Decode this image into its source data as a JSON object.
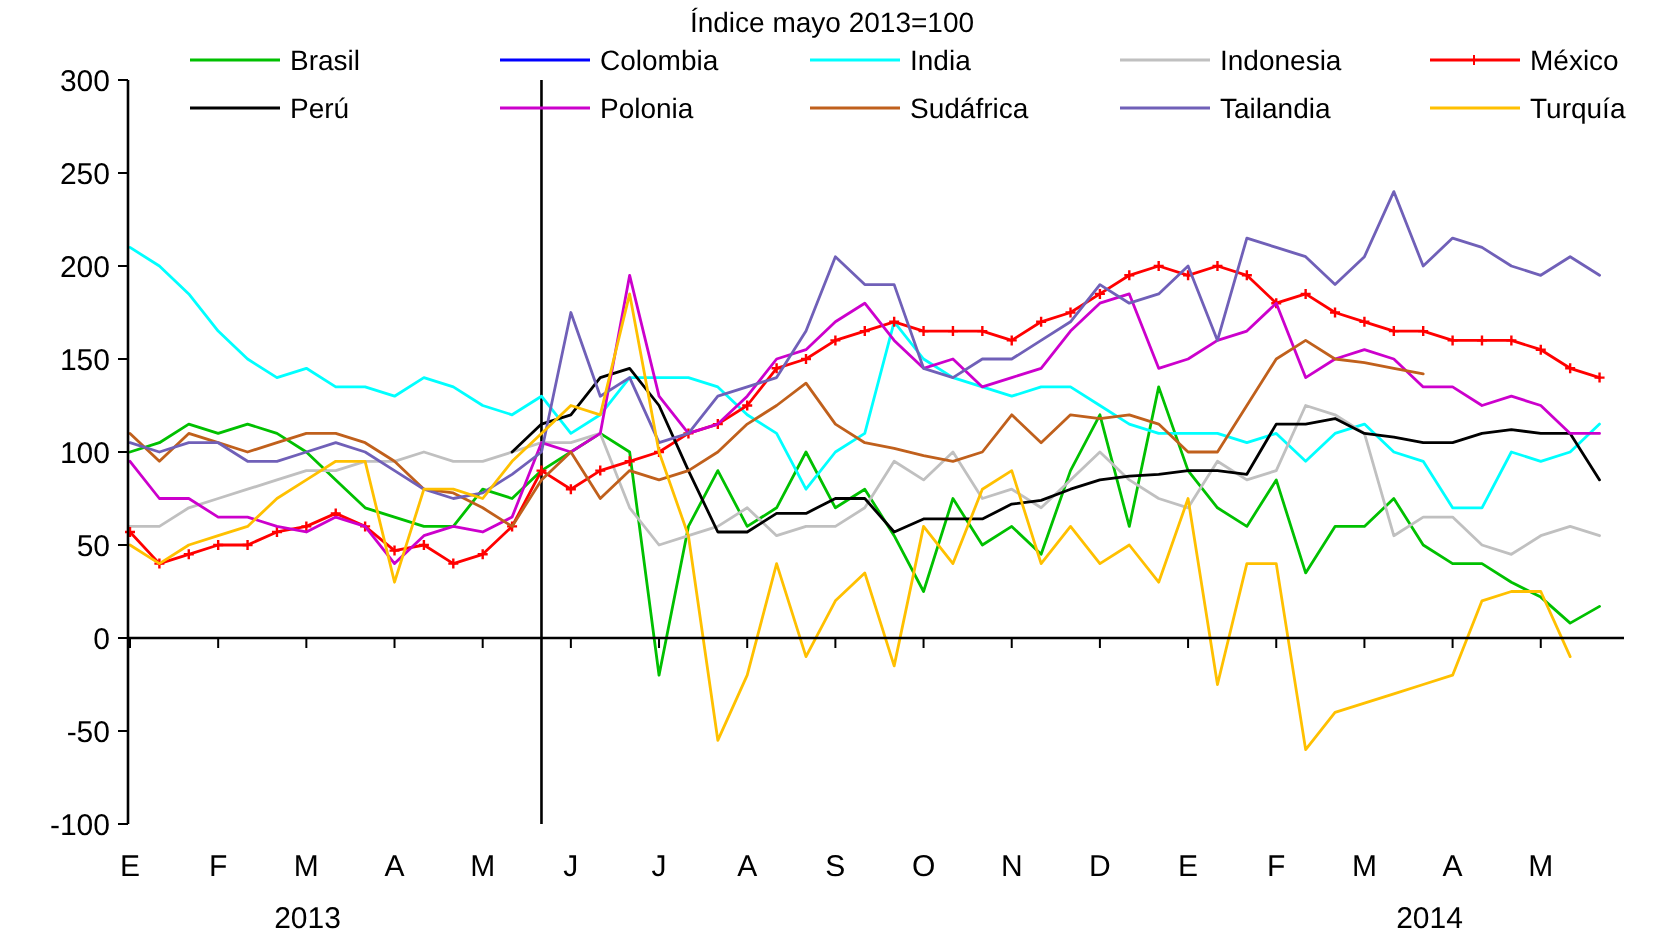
{
  "chart_data": {
    "type": "line",
    "title": "Índice mayo 2013=100",
    "categories": [
      "E",
      null,
      null,
      "F",
      null,
      null,
      "M",
      null,
      null,
      "A",
      null,
      null,
      "M",
      null,
      null,
      "J",
      null,
      null,
      "J",
      null,
      null,
      "A",
      null,
      null,
      "S",
      null,
      null,
      "O",
      null,
      null,
      "N",
      null,
      null,
      "D",
      null,
      null,
      "E",
      null,
      null,
      "F",
      null,
      null,
      "M",
      null,
      null,
      "A",
      null,
      null,
      "M",
      null,
      null
    ],
    "series": [
      {
        "name": "Brasil",
        "color": "#00c000",
        "values": [
          100,
          105,
          115,
          110,
          115,
          110,
          100,
          85,
          70,
          65,
          60,
          60,
          80,
          75,
          90,
          100,
          110,
          100,
          -20,
          60,
          90,
          60,
          70,
          100,
          70,
          80,
          55,
          25,
          75,
          50,
          60,
          45,
          90,
          120,
          60,
          135,
          90,
          70,
          60,
          85,
          35,
          60,
          60,
          75,
          50,
          40,
          40,
          30,
          22,
          8,
          17
        ]
      },
      {
        "name": "Colombia",
        "color": "#0000ff",
        "values": [
          null,
          null,
          null,
          null,
          null,
          null,
          null,
          null,
          null,
          null,
          null,
          null,
          null,
          null,
          null,
          null,
          null,
          null,
          null,
          null,
          null,
          null,
          null,
          null,
          null,
          null,
          null,
          null,
          null,
          null,
          null,
          null,
          null,
          null,
          null,
          null,
          null,
          null,
          null,
          null,
          null,
          null,
          null,
          null,
          null,
          null,
          null,
          null,
          null,
          null,
          null
        ]
      },
      {
        "name": "India",
        "color": "#00ffff",
        "values": [
          210,
          200,
          185,
          165,
          150,
          140,
          145,
          135,
          135,
          130,
          140,
          135,
          125,
          120,
          130,
          110,
          120,
          140,
          140,
          140,
          135,
          120,
          110,
          80,
          100,
          110,
          170,
          150,
          140,
          135,
          130,
          135,
          135,
          125,
          115,
          110,
          110,
          110,
          105,
          110,
          95,
          110,
          115,
          100,
          95,
          70,
          70,
          100,
          95,
          100,
          115
        ]
      },
      {
        "name": "Indonesia",
        "color": "#c0c0c0",
        "values": [
          60,
          60,
          70,
          75,
          80,
          85,
          90,
          90,
          95,
          95,
          100,
          95,
          95,
          100,
          105,
          105,
          110,
          70,
          50,
          55,
          60,
          70,
          55,
          60,
          60,
          70,
          95,
          85,
          100,
          75,
          80,
          70,
          85,
          100,
          85,
          75,
          70,
          95,
          85,
          90,
          125,
          120,
          110,
          55,
          65,
          65,
          50,
          45,
          55,
          60,
          55
        ]
      },
      {
        "name": "México",
        "color": "#ff0000",
        "marker": "cross",
        "values": [
          57,
          40,
          45,
          50,
          50,
          57,
          60,
          67,
          60,
          47,
          50,
          40,
          45,
          60,
          90,
          80,
          90,
          95,
          100,
          110,
          115,
          125,
          145,
          150,
          160,
          165,
          170,
          165,
          165,
          165,
          160,
          170,
          175,
          185,
          195,
          200,
          195,
          200,
          195,
          180,
          185,
          175,
          170,
          165,
          165,
          160,
          160,
          160,
          155,
          145,
          140
        ]
      },
      {
        "name": "Perú",
        "color": "#000000",
        "values": [
          null,
          null,
          null,
          null,
          null,
          null,
          null,
          null,
          null,
          null,
          null,
          null,
          null,
          100,
          115,
          120,
          140,
          145,
          125,
          90,
          57,
          57,
          67,
          67,
          75,
          75,
          57,
          64,
          64,
          64,
          72,
          74,
          80,
          85,
          87,
          88,
          90,
          90,
          88,
          115,
          115,
          118,
          110,
          108,
          105,
          105,
          110,
          112,
          110,
          110,
          85
        ]
      },
      {
        "name": "Polonia",
        "color": "#cc00cc",
        "values": [
          95,
          75,
          75,
          65,
          65,
          60,
          57,
          65,
          60,
          40,
          55,
          60,
          57,
          65,
          105,
          100,
          110,
          195,
          130,
          110,
          115,
          130,
          150,
          155,
          170,
          180,
          160,
          145,
          150,
          135,
          140,
          145,
          165,
          180,
          185,
          145,
          150,
          160,
          165,
          180,
          140,
          150,
          155,
          150,
          135,
          135,
          125,
          130,
          125,
          110,
          110
        ]
      },
      {
        "name": "Sudáfrica",
        "color": "#c0601c",
        "values": [
          110,
          95,
          110,
          105,
          100,
          105,
          110,
          110,
          105,
          95,
          80,
          78,
          70,
          60,
          85,
          100,
          75,
          90,
          85,
          90,
          100,
          115,
          125,
          137,
          115,
          105,
          102,
          98,
          95,
          100,
          120,
          105,
          120,
          118,
          120,
          115,
          100,
          100,
          125,
          150,
          160,
          150,
          148,
          145,
          142,
          null,
          null,
          null,
          null,
          null,
          null
        ]
      },
      {
        "name": "Tailandia",
        "color": "#7060b8",
        "values": [
          105,
          100,
          105,
          105,
          95,
          95,
          100,
          105,
          100,
          90,
          80,
          75,
          78,
          88,
          100,
          175,
          130,
          140,
          105,
          110,
          130,
          135,
          140,
          165,
          205,
          190,
          190,
          145,
          140,
          150,
          150,
          160,
          170,
          190,
          180,
          185,
          200,
          160,
          215,
          210,
          205,
          190,
          205,
          240,
          200,
          215,
          210,
          200,
          195,
          205,
          195
        ]
      },
      {
        "name": "Turquía",
        "color": "#ffc000",
        "values": [
          50,
          40,
          50,
          55,
          60,
          75,
          85,
          95,
          95,
          30,
          80,
          80,
          75,
          95,
          110,
          125,
          120,
          185,
          100,
          55,
          -55,
          -20,
          40,
          -10,
          20,
          35,
          -15,
          60,
          40,
          80,
          90,
          40,
          60,
          40,
          50,
          30,
          75,
          -25,
          40,
          40,
          -60,
          -40,
          -35,
          -30,
          -25,
          -20,
          20,
          25,
          25,
          -10,
          null
        ]
      }
    ],
    "ylim": [
      -100,
      300
    ],
    "yticks": [
      -100,
      -50,
      0,
      50,
      100,
      150,
      200,
      250,
      300
    ],
    "annotations": [
      "2013",
      "2014"
    ],
    "legend": "top",
    "line_style": "solid"
  }
}
